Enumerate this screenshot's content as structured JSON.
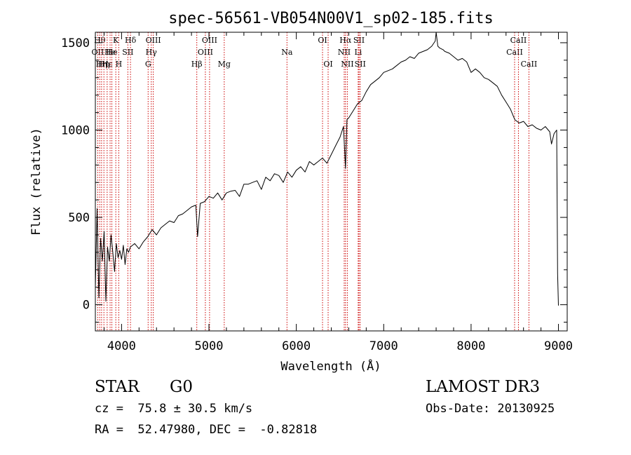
{
  "chart_data": {
    "type": "line",
    "title": "spec-56561-VB054N00V1_sp02-185.fits",
    "xlabel": "Wavelength (Å)",
    "ylabel": "Flux (relative)",
    "xlim": [
      3700,
      9100
    ],
    "ylim": [
      -150,
      1560
    ],
    "xticks": [
      {
        "value": 4000,
        "label": "4000"
      },
      {
        "value": 5000,
        "label": "5000"
      },
      {
        "value": 6000,
        "label": "6000"
      },
      {
        "value": 7000,
        "label": "7000"
      },
      {
        "value": 8000,
        "label": "8000"
      },
      {
        "value": 9000,
        "label": "9000"
      }
    ],
    "yticks": [
      {
        "value": 0,
        "label": "0"
      },
      {
        "value": 500,
        "label": "500"
      },
      {
        "value": 1000,
        "label": "1000"
      },
      {
        "value": 1500,
        "label": "1500"
      }
    ],
    "xminor_step": 200,
    "yminor_step": 100,
    "line_color": "#000000",
    "marker_color": "#cc0000",
    "series": [
      {
        "name": "spectrum",
        "x": [
          3700,
          3720,
          3740,
          3760,
          3780,
          3800,
          3820,
          3840,
          3860,
          3880,
          3900,
          3920,
          3940,
          3960,
          3980,
          4000,
          4020,
          4040,
          4060,
          4080,
          4100,
          4150,
          4200,
          4250,
          4300,
          4350,
          4400,
          4450,
          4500,
          4550,
          4600,
          4650,
          4700,
          4750,
          4800,
          4850,
          4870,
          4900,
          4950,
          5000,
          5050,
          5100,
          5150,
          5200,
          5250,
          5300,
          5350,
          5400,
          5450,
          5500,
          5550,
          5600,
          5650,
          5700,
          5750,
          5800,
          5850,
          5900,
          5950,
          6000,
          6050,
          6100,
          6150,
          6200,
          6250,
          6300,
          6350,
          6400,
          6450,
          6500,
          6540,
          6563,
          6580,
          6600,
          6650,
          6700,
          6750,
          6800,
          6850,
          6900,
          6950,
          7000,
          7050,
          7100,
          7150,
          7200,
          7250,
          7300,
          7350,
          7400,
          7450,
          7500,
          7550,
          7590,
          7600,
          7620,
          7640,
          7680,
          7700,
          7750,
          7800,
          7850,
          7900,
          7950,
          8000,
          8050,
          8100,
          8150,
          8200,
          8250,
          8300,
          8350,
          8400,
          8450,
          8500,
          8550,
          8600,
          8650,
          8700,
          8750,
          8800,
          8850,
          8900,
          8920,
          8950,
          8980,
          8990,
          9000
        ],
        "y": [
          100,
          550,
          40,
          380,
          250,
          420,
          20,
          330,
          250,
          400,
          300,
          190,
          350,
          270,
          310,
          260,
          340,
          230,
          320,
          300,
          330,
          350,
          320,
          360,
          390,
          430,
          400,
          440,
          460,
          480,
          470,
          510,
          520,
          540,
          560,
          570,
          390,
          580,
          590,
          620,
          610,
          640,
          600,
          640,
          650,
          655,
          620,
          690,
          690,
          700,
          710,
          660,
          730,
          710,
          750,
          740,
          700,
          760,
          730,
          770,
          790,
          760,
          820,
          800,
          820,
          840,
          810,
          860,
          910,
          960,
          1020,
          780,
          1060,
          1070,
          1110,
          1150,
          1170,
          1220,
          1260,
          1280,
          1300,
          1330,
          1340,
          1350,
          1370,
          1390,
          1400,
          1420,
          1410,
          1440,
          1450,
          1460,
          1480,
          1510,
          1560,
          1480,
          1470,
          1460,
          1450,
          1440,
          1420,
          1400,
          1410,
          1390,
          1330,
          1350,
          1330,
          1300,
          1290,
          1270,
          1250,
          1200,
          1160,
          1120,
          1060,
          1040,
          1050,
          1020,
          1030,
          1010,
          1000,
          1020,
          990,
          920,
          980,
          1000,
          180,
          -5
        ]
      }
    ],
    "line_markers": [
      {
        "x": 3727,
        "label": "OII",
        "row": 1
      },
      {
        "x": 3750,
        "label": "Hθ",
        "row": 0
      },
      {
        "x": 3771,
        "label": "Hη",
        "row": 2
      },
      {
        "x": 3798,
        "label": "Hη",
        "row": 2
      },
      {
        "x": 3835,
        "label": "Hε",
        "row": 2
      },
      {
        "x": 3869,
        "label": "He",
        "row": 1
      },
      {
        "x": 3889,
        "label": "He",
        "row": 1
      },
      {
        "x": 3934,
        "label": "K",
        "row": 0
      },
      {
        "x": 3968,
        "label": "H",
        "row": 2
      },
      {
        "x": 4072,
        "label": "SII",
        "row": 1
      },
      {
        "x": 4102,
        "label": "Hδ",
        "row": 0
      },
      {
        "x": 4304,
        "label": "G",
        "row": 2
      },
      {
        "x": 4340,
        "label": "Hγ",
        "row": 1
      },
      {
        "x": 4363,
        "label": "OIII",
        "row": 0
      },
      {
        "x": 4861,
        "label": "Hβ",
        "row": 2
      },
      {
        "x": 4959,
        "label": "OIII",
        "row": 1
      },
      {
        "x": 5007,
        "label": "OIII",
        "row": 0
      },
      {
        "x": 5175,
        "label": "Mg",
        "row": 2
      },
      {
        "x": 5893,
        "label": "Na",
        "row": 1
      },
      {
        "x": 6300,
        "label": "OI",
        "row": 0
      },
      {
        "x": 6364,
        "label": "OI",
        "row": 2
      },
      {
        "x": 6548,
        "label": "NII",
        "row": 1
      },
      {
        "x": 6563,
        "label": "Hα",
        "row": 0
      },
      {
        "x": 6584,
        "label": "NII",
        "row": 2
      },
      {
        "x": 6708,
        "label": "Li",
        "row": 1
      },
      {
        "x": 6717,
        "label": "SII",
        "row": 0
      },
      {
        "x": 6731,
        "label": "SII",
        "row": 2
      },
      {
        "x": 8498,
        "label": "CaII",
        "row": 1
      },
      {
        "x": 8542,
        "label": "CaII",
        "row": 0
      },
      {
        "x": 8662,
        "label": "CaII",
        "row": 2
      }
    ]
  },
  "info": {
    "object_class": "STAR",
    "subclass": "G0",
    "survey": "LAMOST DR3",
    "redshift": "cz =  75.8 ± 30.5 km/s",
    "obs_date": "Obs-Date: 20130925",
    "coords": "RA =  52.47980, DEC =  -0.82818"
  }
}
